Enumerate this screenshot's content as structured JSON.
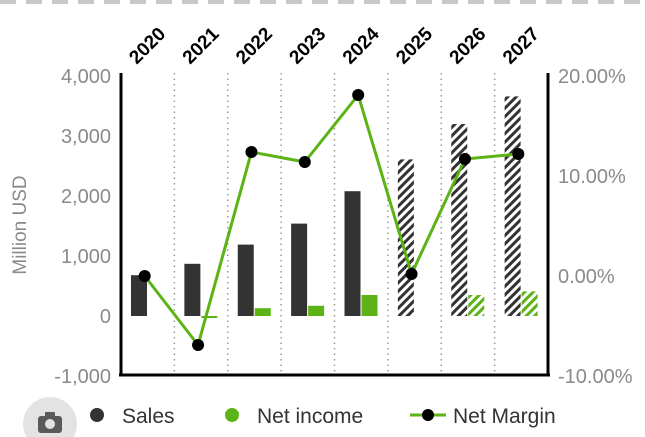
{
  "chart_data": {
    "type": "bar",
    "categories": [
      "2020",
      "2021",
      "2022",
      "2023",
      "2024",
      "2025",
      "2026",
      "2027"
    ],
    "ylabel": "Million USD",
    "ylim": [
      -1000,
      4000
    ],
    "yticks": [
      {
        "value": -1000,
        "label": "-1,000"
      },
      {
        "value": 0,
        "label": "0"
      },
      {
        "value": 1000,
        "label": "1,000"
      },
      {
        "value": 2000,
        "label": "2,000"
      },
      {
        "value": 3000,
        "label": "3,000"
      },
      {
        "value": 4000,
        "label": "4,000"
      }
    ],
    "y2lim": [
      -10,
      20
    ],
    "y2ticks": [
      {
        "value": -10,
        "label": "-10.00%"
      },
      {
        "value": 0,
        "label": "0.00%"
      },
      {
        "value": 10,
        "label": "10.00%"
      },
      {
        "value": 20,
        "label": "20.00%"
      }
    ],
    "estimate_categories": [
      "2025",
      "2026",
      "2027"
    ],
    "grid": "vertical-dotted",
    "legend_position": "bottom",
    "series": [
      {
        "name": "Sales",
        "kind": "bar",
        "color": "#333333",
        "values": [
          680,
          870,
          1190,
          1540,
          2080,
          2610,
          3200,
          3660
        ]
      },
      {
        "name": "Net income",
        "kind": "bar",
        "color": "#5cb315",
        "values": [
          0,
          -30,
          130,
          170,
          350,
          0,
          350,
          410
        ]
      },
      {
        "name": "Net Margin",
        "kind": "line",
        "axis": "right",
        "color": "#5cb315",
        "marker_color": "#000000",
        "values": [
          0.0,
          -6.9,
          12.4,
          11.4,
          18.1,
          0.2,
          11.7,
          12.2
        ]
      }
    ],
    "legend": [
      {
        "label": "Sales",
        "marker": "dot",
        "color": "#333333"
      },
      {
        "label": "Net income",
        "marker": "dot",
        "color": "#5cb315"
      },
      {
        "label": "Net Margin",
        "marker": "line-dot",
        "color": "#5cb315"
      }
    ]
  }
}
